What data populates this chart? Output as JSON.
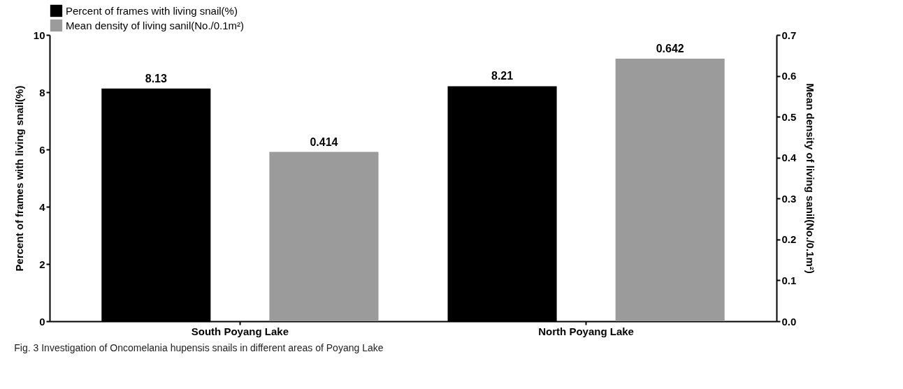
{
  "chart_data": {
    "type": "bar",
    "categories": [
      "South Poyang Lake",
      "North Poyang Lake"
    ],
    "series": [
      {
        "name": "Percent of frames with living snail(%)",
        "color": "#000000",
        "values": [
          8.13,
          8.21
        ]
      },
      {
        "name": "Mean density of living sanil(No./0.1m²)",
        "color": "#9b9b9b",
        "values": [
          0.414,
          0.642
        ],
        "axis": "y2"
      }
    ],
    "ylabel": "Percent of frames with living snail(%)",
    "y2label": "Mean density of living sanil(No./0.1m²)",
    "ylim": [
      0,
      10
    ],
    "yticks": [
      0,
      2,
      4,
      6,
      8,
      10
    ],
    "y2lim": [
      0,
      0.7
    ],
    "y2ticks": [
      {
        "value": 0,
        "label": "0.0"
      },
      0.1,
      0.2,
      0.3,
      0.4,
      0.5,
      0.6,
      0.7
    ],
    "data_labels": true,
    "grid": false,
    "legend": "top",
    "annotations": [
      "Fig. 3 Investigation of Oncomelania hupensis snails in different areas of Poyang Lake"
    ]
  }
}
